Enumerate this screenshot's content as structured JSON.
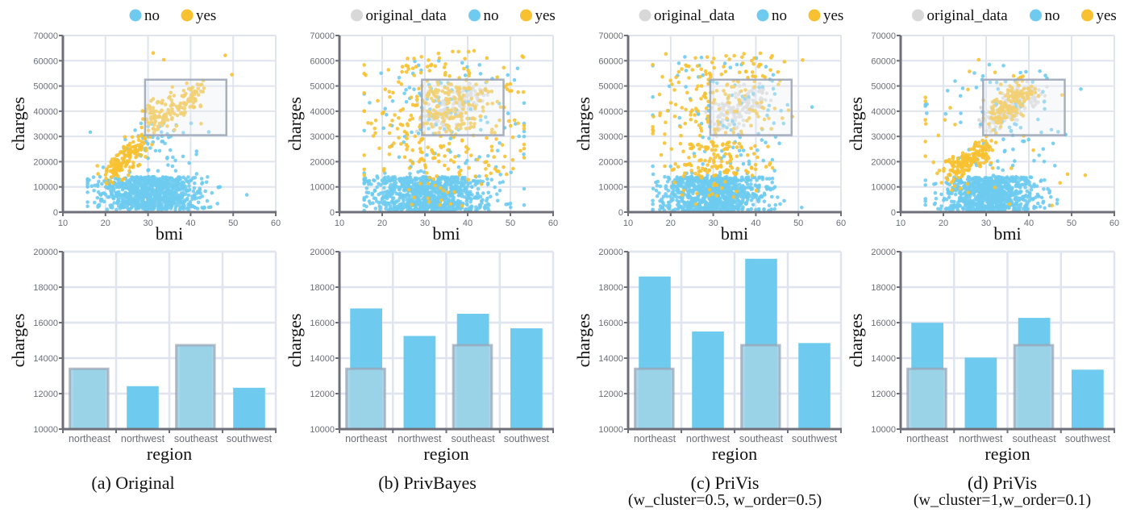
{
  "colors": {
    "no": "#6ecbef",
    "yes": "#f7c131",
    "original_data": "#d8d8d8",
    "original_bar": "#9fd3e6",
    "grid": "#dfe4ef",
    "axis": "#6e6f78",
    "highlight_box": "#9aa3b5"
  },
  "chart_data": [
    {
      "id": "a",
      "caption": "(a) Original",
      "subcaption": "",
      "scatter": {
        "type": "scatter",
        "xlabel": "bmi",
        "ylabel": "charges",
        "xlim": [
          10,
          60
        ],
        "ylim": [
          0,
          70000
        ],
        "xticks": [
          10,
          20,
          30,
          40,
          50,
          60
        ],
        "yticks": [
          0,
          10000,
          20000,
          30000,
          40000,
          50000,
          60000,
          70000
        ],
        "legend": [
          "no",
          "yes"
        ],
        "legend_position": "top",
        "grid": true,
        "highlight_box": {
          "bmi": [
            29.3,
            48.4
          ],
          "charges": [
            30500,
            52500
          ]
        },
        "clusters": [
          {
            "series": "no",
            "n": 900,
            "bmi_mean": 30.5,
            "bmi_sd": 5.8,
            "charges_range": [
              1000,
              14000
            ],
            "shape": "uniform"
          },
          {
            "series": "no",
            "n": 60,
            "bmi_mean": 32,
            "bmi_sd": 5,
            "charges_range": [
              14000,
              36000
            ],
            "shape": "uniform"
          },
          {
            "series": "yes",
            "n": 160,
            "bmi_mean": 25,
            "bmi_sd": 3,
            "charges_range": [
              13000,
              30000
            ],
            "shape": "trend"
          },
          {
            "series": "yes",
            "n": 140,
            "bmi_mean": 36,
            "bmi_sd": 4.5,
            "charges_range": [
              33000,
              50000
            ],
            "shape": "trend"
          },
          {
            "series": "yes",
            "n": 12,
            "bmi_mean": 38,
            "bmi_sd": 8,
            "charges_range": [
              30000,
              64000
            ],
            "shape": "uniform"
          }
        ]
      },
      "bar": {
        "type": "bar",
        "xlabel": "region",
        "ylabel": "charges",
        "categories": [
          "northeast",
          "northwest",
          "southeast",
          "southwest"
        ],
        "values": [
          13400,
          12420,
          14730,
          12330
        ],
        "original_values": [
          13400,
          null,
          14730,
          null
        ],
        "ylim": [
          10000,
          20000
        ],
        "yticks": [
          10000,
          12000,
          14000,
          16000,
          18000,
          20000
        ],
        "grid": true
      }
    },
    {
      "id": "b",
      "caption": "(b) PrivBayes",
      "subcaption": "",
      "scatter": {
        "type": "scatter",
        "xlabel": "bmi",
        "ylabel": "charges",
        "xlim": [
          10,
          60
        ],
        "ylim": [
          0,
          70000
        ],
        "xticks": [
          10,
          20,
          30,
          40,
          50,
          60
        ],
        "yticks": [
          0,
          10000,
          20000,
          30000,
          40000,
          50000,
          60000,
          70000
        ],
        "legend": [
          "original_data",
          "no",
          "yes"
        ],
        "legend_position": "top",
        "grid": true,
        "highlight_box": {
          "bmi": [
            29.3,
            48.4
          ],
          "charges": [
            30500,
            52500
          ]
        },
        "clusters": [
          {
            "series": "original_data",
            "n": 140,
            "bmi_mean": 36,
            "bmi_sd": 4.5,
            "charges_range": [
              33000,
              50000
            ],
            "shape": "trend"
          },
          {
            "series": "no",
            "n": 850,
            "bmi_mean": 31,
            "bmi_sd": 7,
            "charges_range": [
              500,
              14000
            ],
            "shape": "uniform"
          },
          {
            "series": "no",
            "n": 120,
            "bmi_mean": 35,
            "bmi_sd": 10,
            "charges_range": [
              14000,
              62000
            ],
            "shape": "uniform"
          },
          {
            "series": "yes",
            "n": 260,
            "bmi_mean": 34,
            "bmi_sd": 10,
            "charges_range": [
              14000,
              64000
            ],
            "shape": "uniform"
          },
          {
            "series": "yes",
            "n": 120,
            "bmi_mean": 37,
            "bmi_sd": 5,
            "charges_range": [
              33000,
              50000
            ],
            "shape": "uniform"
          },
          {
            "series": "yes",
            "n": 20,
            "bmi_mean": 33,
            "bmi_sd": 6,
            "charges_range": [
              1000,
              14000
            ],
            "shape": "uniform"
          }
        ]
      },
      "bar": {
        "type": "bar",
        "xlabel": "region",
        "ylabel": "charges",
        "categories": [
          "northeast",
          "northwest",
          "southeast",
          "southwest"
        ],
        "values": [
          16800,
          15250,
          16500,
          15680
        ],
        "original_values": [
          13400,
          null,
          14730,
          null
        ],
        "ylim": [
          10000,
          20000
        ],
        "yticks": [
          10000,
          12000,
          14000,
          16000,
          18000,
          20000
        ],
        "grid": true
      }
    },
    {
      "id": "c",
      "caption": "(c) PriVis",
      "subcaption": "(w_cluster=0.5, w_order=0.5)",
      "scatter": {
        "type": "scatter",
        "xlabel": "bmi",
        "ylabel": "charges",
        "xlim": [
          10,
          60
        ],
        "ylim": [
          0,
          70000
        ],
        "xticks": [
          10,
          20,
          30,
          40,
          50,
          60
        ],
        "yticks": [
          0,
          10000,
          20000,
          30000,
          40000,
          50000,
          60000,
          70000
        ],
        "legend": [
          "original_data",
          "no",
          "yes"
        ],
        "legend_position": "top",
        "grid": true,
        "highlight_box": {
          "bmi": [
            29.3,
            48.4
          ],
          "charges": [
            30500,
            52500
          ]
        },
        "clusters": [
          {
            "series": "original_data",
            "n": 140,
            "bmi_mean": 36,
            "bmi_sd": 4.5,
            "charges_range": [
              33000,
              50000
            ],
            "shape": "trend"
          },
          {
            "series": "no",
            "n": 900,
            "bmi_mean": 30,
            "bmi_sd": 6,
            "charges_range": [
              500,
              14000
            ],
            "shape": "uniform"
          },
          {
            "series": "no",
            "n": 110,
            "bmi_mean": 33,
            "bmi_sd": 8,
            "charges_range": [
              14000,
              62000
            ],
            "shape": "uniform"
          },
          {
            "series": "yes",
            "n": 130,
            "bmi_mean": 30,
            "bmi_sd": 6,
            "charges_range": [
              14000,
              28000
            ],
            "shape": "uniform"
          },
          {
            "series": "yes",
            "n": 170,
            "bmi_mean": 32,
            "bmi_sd": 8,
            "charges_range": [
              30000,
              63000
            ],
            "shape": "uniform"
          },
          {
            "series": "yes",
            "n": 18,
            "bmi_mean": 30,
            "bmi_sd": 6,
            "charges_range": [
              1000,
              14000
            ],
            "shape": "uniform"
          }
        ]
      },
      "bar": {
        "type": "bar",
        "xlabel": "region",
        "ylabel": "charges",
        "categories": [
          "northeast",
          "northwest",
          "southeast",
          "southwest"
        ],
        "values": [
          18600,
          15500,
          19600,
          14850
        ],
        "original_values": [
          13400,
          null,
          14730,
          null
        ],
        "ylim": [
          10000,
          20000
        ],
        "yticks": [
          10000,
          12000,
          14000,
          16000,
          18000,
          20000
        ],
        "grid": true
      }
    },
    {
      "id": "d",
      "caption": "(d) PriVis",
      "subcaption": "(w_cluster=1,w_order=0.1)",
      "scatter": {
        "type": "scatter",
        "xlabel": "bmi",
        "ylabel": "charges",
        "xlim": [
          10,
          60
        ],
        "ylim": [
          0,
          70000
        ],
        "xticks": [
          10,
          20,
          30,
          40,
          50,
          60
        ],
        "yticks": [
          0,
          10000,
          20000,
          30000,
          40000,
          50000,
          60000,
          70000
        ],
        "legend": [
          "original_data",
          "no",
          "yes"
        ],
        "legend_position": "top",
        "grid": true,
        "highlight_box": {
          "bmi": [
            29.3,
            48.4
          ],
          "charges": [
            30500,
            52500
          ]
        },
        "clusters": [
          {
            "series": "original_data",
            "n": 140,
            "bmi_mean": 36,
            "bmi_sd": 4.5,
            "charges_range": [
              33000,
              50000
            ],
            "shape": "trend"
          },
          {
            "series": "no",
            "n": 900,
            "bmi_mean": 31,
            "bmi_sd": 5.5,
            "charges_range": [
              500,
              14000
            ],
            "shape": "uniform"
          },
          {
            "series": "no",
            "n": 90,
            "bmi_mean": 34,
            "bmi_sd": 9,
            "charges_range": [
              14000,
              60000
            ],
            "shape": "uniform"
          },
          {
            "series": "yes",
            "n": 170,
            "bmi_mean": 26,
            "bmi_sd": 3.5,
            "charges_range": [
              13000,
              28000
            ],
            "shape": "trend"
          },
          {
            "series": "yes",
            "n": 160,
            "bmi_mean": 35,
            "bmi_sd": 3.5,
            "charges_range": [
              33000,
              50000
            ],
            "shape": "trend"
          },
          {
            "series": "yes",
            "n": 40,
            "bmi_mean": 30,
            "bmi_sd": 12,
            "charges_range": [
              1000,
              63000
            ],
            "shape": "uniform"
          }
        ]
      },
      "bar": {
        "type": "bar",
        "xlabel": "region",
        "ylabel": "charges",
        "categories": [
          "northeast",
          "northwest",
          "southeast",
          "southwest"
        ],
        "values": [
          15990,
          14030,
          16270,
          13350
        ],
        "original_values": [
          13400,
          null,
          14730,
          null
        ],
        "ylim": [
          10000,
          20000
        ],
        "yticks": [
          10000,
          12000,
          14000,
          16000,
          18000,
          20000
        ],
        "grid": true
      }
    }
  ]
}
